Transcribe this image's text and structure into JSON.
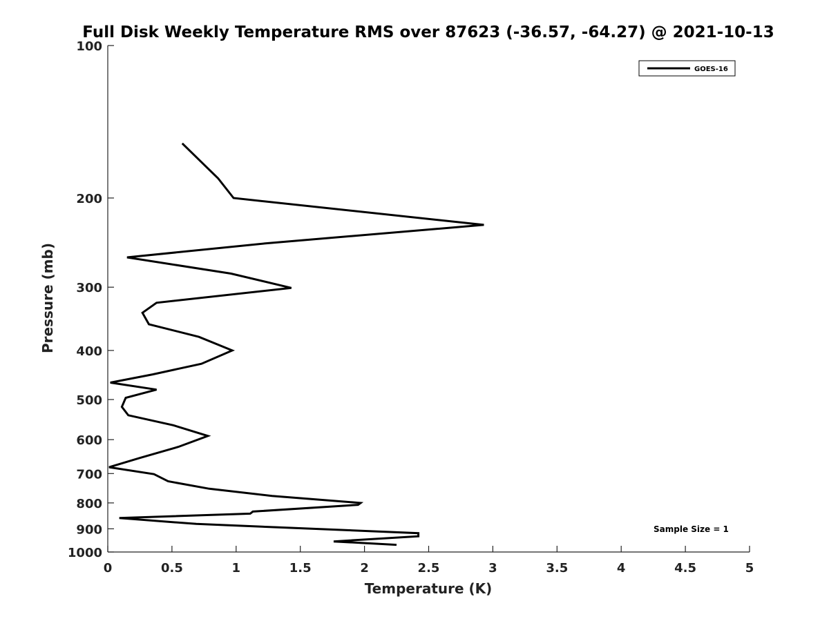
{
  "chart_data": {
    "type": "line",
    "title": "Full Disk Weekly Temperature RMS over 87623 (-36.57, -64.27) @ 2021-10-13",
    "xlabel": "Temperature (K)",
    "ylabel": "Pressure (mb)",
    "xlim": [
      0,
      5
    ],
    "ylim": [
      100,
      1000
    ],
    "y_scale": "log",
    "y_reversed": true,
    "grid": false,
    "legend_position": "top-right",
    "x_ticks": [
      "0",
      "0.5",
      "1",
      "1.5",
      "2",
      "2.5",
      "3",
      "3.5",
      "4",
      "4.5",
      "5"
    ],
    "y_ticks": [
      "100",
      "200",
      "300",
      "400",
      "500",
      "600",
      "700",
      "800",
      "900",
      "1000"
    ],
    "series": [
      {
        "name": "GOES-16",
        "color": "#000000",
        "x": [
          0.58,
          0.86,
          0.98,
          2.93,
          1.22,
          0.15,
          0.96,
          1.43,
          0.38,
          0.27,
          0.32,
          0.71,
          0.97,
          0.73,
          0.35,
          0.02,
          0.38,
          0.14,
          0.11,
          0.16,
          0.51,
          0.78,
          0.55,
          0.25,
          0.01,
          0.36,
          0.47,
          0.79,
          1.28,
          1.97,
          1.95,
          1.13,
          1.11,
          0.09,
          0.69,
          2.42,
          2.42,
          1.76,
          2.25
        ],
        "y": [
          156,
          183,
          200,
          226,
          246,
          262,
          282,
          301,
          322,
          337,
          355,
          376,
          400,
          425,
          446,
          463,
          478,
          496,
          517,
          537,
          562,
          590,
          620,
          652,
          680,
          702,
          725,
          750,
          775,
          800,
          807,
          832,
          840,
          857,
          880,
          918,
          931,
          953,
          968
        ]
      }
    ],
    "annotation": "Sample Size = 1"
  }
}
